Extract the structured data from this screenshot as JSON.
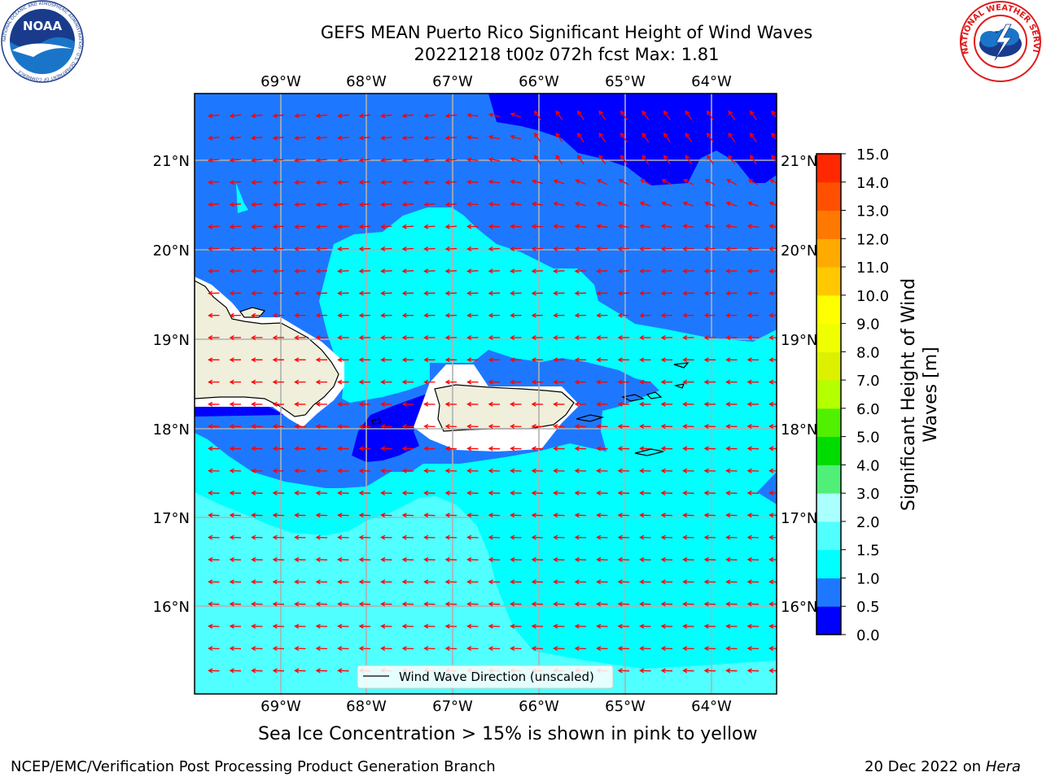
{
  "header": {
    "title_line1": "GEFS MEAN Puerto Rico Significant Height of Wind Waves",
    "title_line2": "20221218 t00z 072h fcst   Max: 1.81"
  },
  "map": {
    "lon_labels": [
      "69°W",
      "68°W",
      "67°W",
      "66°W",
      "65°W",
      "64°W"
    ],
    "lat_labels": [
      "21°N",
      "20°N",
      "19°N",
      "18°N",
      "17°N",
      "16°N"
    ],
    "legend_label": "Wind Wave Direction (unscaled)",
    "arrow_color": "#ff0000",
    "land_color": "#efefdc"
  },
  "colorbar": {
    "label_line1": "Significant Height of Wind",
    "label_line2": "Waves [m]",
    "ticks": [
      "0.0",
      "0.5",
      "1.0",
      "1.5",
      "2.0",
      "3.0",
      "4.0",
      "5.0",
      "6.0",
      "7.0",
      "8.0",
      "9.0",
      "10.0",
      "11.0",
      "12.0",
      "13.0",
      "14.0",
      "15.0"
    ],
    "colors": [
      "#0000ff",
      "#1e78ff",
      "#00ffff",
      "#50ffff",
      "#aaffff",
      "#50f078",
      "#00dc00",
      "#50f000",
      "#b4ff00",
      "#dcf000",
      "#f0ff00",
      "#ffff00",
      "#ffc800",
      "#ffaa00",
      "#ff7800",
      "#ff5000",
      "#ff2800"
    ]
  },
  "notes": {
    "sea_ice": "Sea Ice Concentration > 15% is shown in pink to yellow"
  },
  "footer": {
    "left": "NCEP/EMC/Verification Post Processing Product Generation Branch",
    "date": "20 Dec 2022 on ",
    "machine": "Hera"
  },
  "logos": {
    "noaa_text": "NOAA",
    "noaa_ring": "NATIONAL OCEANIC AND ATMOSPHERIC ADMINISTRATION · U.S. DEPARTMENT OF COMMERCE ·",
    "nws_ring": "NATIONAL WEATHER SERVICE"
  }
}
